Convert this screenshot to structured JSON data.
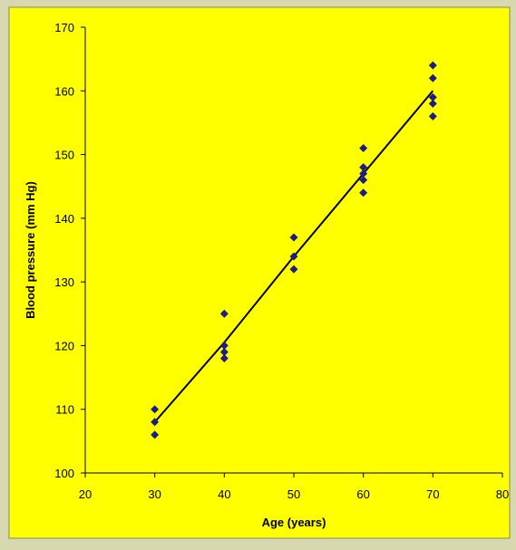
{
  "chart_data": {
    "type": "scatter",
    "title": "",
    "xlabel": "Age (years)",
    "ylabel": "Blood pressure (mm Hg)",
    "xlim": [
      20,
      80
    ],
    "ylim": [
      100,
      170
    ],
    "x_ticks": [
      20,
      30,
      40,
      50,
      60,
      70,
      80
    ],
    "y_ticks": [
      100,
      110,
      120,
      130,
      140,
      150,
      160,
      170
    ],
    "grid": false,
    "legend": "none",
    "colors": {
      "plot_background": "#ffff00",
      "page_background": "#d8d8b0",
      "marker": "#1c1c8c",
      "line": "#000000"
    },
    "series": [
      {
        "type": "scatter",
        "marker": "diamond",
        "points": [
          {
            "x": 30,
            "y": 106
          },
          {
            "x": 30,
            "y": 108
          },
          {
            "x": 30,
            "y": 110
          },
          {
            "x": 40,
            "y": 118
          },
          {
            "x": 40,
            "y": 119
          },
          {
            "x": 40,
            "y": 120
          },
          {
            "x": 40,
            "y": 125
          },
          {
            "x": 50,
            "y": 132
          },
          {
            "x": 50,
            "y": 134
          },
          {
            "x": 50,
            "y": 137
          },
          {
            "x": 60,
            "y": 144
          },
          {
            "x": 60,
            "y": 146
          },
          {
            "x": 60,
            "y": 147
          },
          {
            "x": 60,
            "y": 148
          },
          {
            "x": 60,
            "y": 151
          },
          {
            "x": 70,
            "y": 156
          },
          {
            "x": 70,
            "y": 158
          },
          {
            "x": 70,
            "y": 159
          },
          {
            "x": 70,
            "y": 162
          },
          {
            "x": 70,
            "y": 164
          }
        ]
      },
      {
        "type": "line",
        "points": [
          {
            "x": 30,
            "y": 108
          },
          {
            "x": 40,
            "y": 120.5
          },
          {
            "x": 50,
            "y": 134
          },
          {
            "x": 60,
            "y": 147
          },
          {
            "x": 70,
            "y": 160
          }
        ]
      }
    ]
  }
}
